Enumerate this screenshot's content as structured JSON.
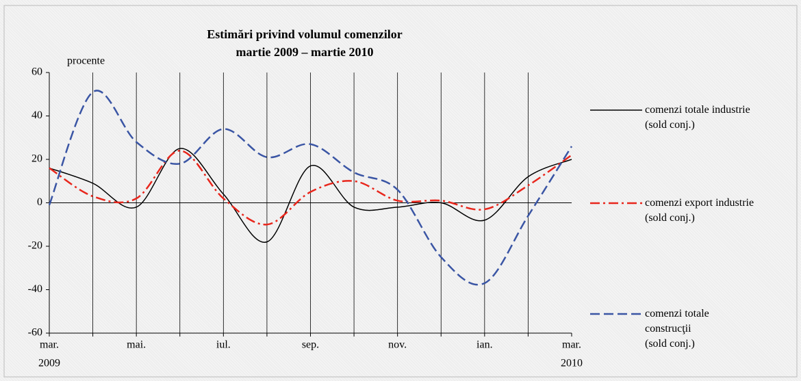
{
  "chart_data": {
    "type": "line",
    "title": "Estimări privind volumul comenzilor",
    "subtitle": "martie 2009 – martie 2010",
    "y_label": "procente",
    "categories": [
      "mar.",
      null,
      "mai.",
      null,
      "iul.",
      null,
      "sep.",
      null,
      "nov.",
      null,
      "ian.",
      null,
      "mar."
    ],
    "category_years": [
      "2009",
      null,
      null,
      null,
      null,
      null,
      null,
      null,
      null,
      null,
      null,
      null,
      "2010"
    ],
    "ylim": [
      -60,
      60
    ],
    "yticks": [
      -60,
      -40,
      -20,
      0,
      20,
      40,
      60
    ],
    "legend": "right",
    "series": [
      {
        "name": "comenzi totale industrie\n(sold conj.)",
        "color": "#000000",
        "style": "solid",
        "values": [
          16,
          9,
          -2,
          25,
          4,
          -18,
          17,
          -2,
          -2,
          0,
          -8,
          12,
          20
        ]
      },
      {
        "name": "comenzi export industrie\n(sold conj.)",
        "color": "#e8261c",
        "style": "dashdot",
        "values": [
          16,
          3,
          2,
          24,
          2,
          -10,
          5,
          10,
          1,
          1,
          -3,
          8,
          22
        ]
      },
      {
        "name": "comenzi totale\nconstrucţii\n(sold conj.)",
        "color": "#3a55a4",
        "style": "dashed",
        "values": [
          -1,
          51,
          28,
          18,
          34,
          21,
          27,
          14,
          6,
          -25,
          -37,
          -6,
          26
        ]
      }
    ]
  }
}
